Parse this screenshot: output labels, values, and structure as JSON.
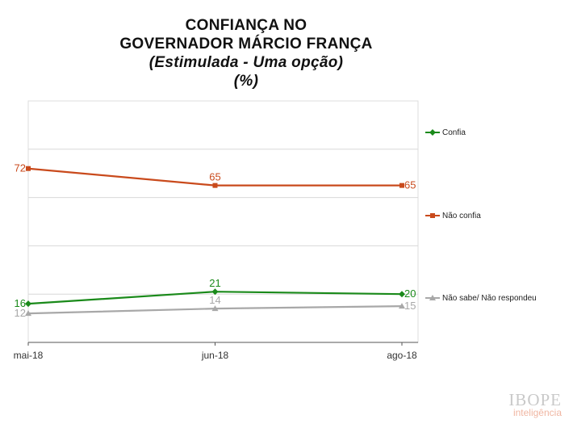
{
  "header": {
    "title_line1": "CONFIANÇA NO",
    "title_line2": "GOVERNADOR MÁRCIO FRANÇA",
    "subtitle": "(Estimulada - Uma opção)",
    "unit": "(%)"
  },
  "chart_data": {
    "type": "line",
    "title": "CONFIANÇA NO GOVERNADOR MÁRCIO FRANÇA",
    "subtitle": "(Estimulada - Uma opção)",
    "unit": "(%)",
    "categories": [
      "mai-18",
      "jun-18",
      "ago-18"
    ],
    "ylim": [
      0,
      100
    ],
    "grid": true,
    "legend_position": "right",
    "series": [
      {
        "name": "Confia",
        "values": [
          16,
          21,
          20
        ],
        "color": "#1a8a1a",
        "marker": "diamond"
      },
      {
        "name": "Não confia",
        "values": [
          72,
          65,
          65
        ],
        "color": "#c94a1c",
        "marker": "square"
      },
      {
        "name": "Não sabe/ Não respondeu",
        "values": [
          12,
          14,
          15
        ],
        "color": "#a8a8a8",
        "marker": "triangle"
      }
    ]
  },
  "logo": {
    "brand": "IBOPE",
    "sub": "inteligência"
  }
}
